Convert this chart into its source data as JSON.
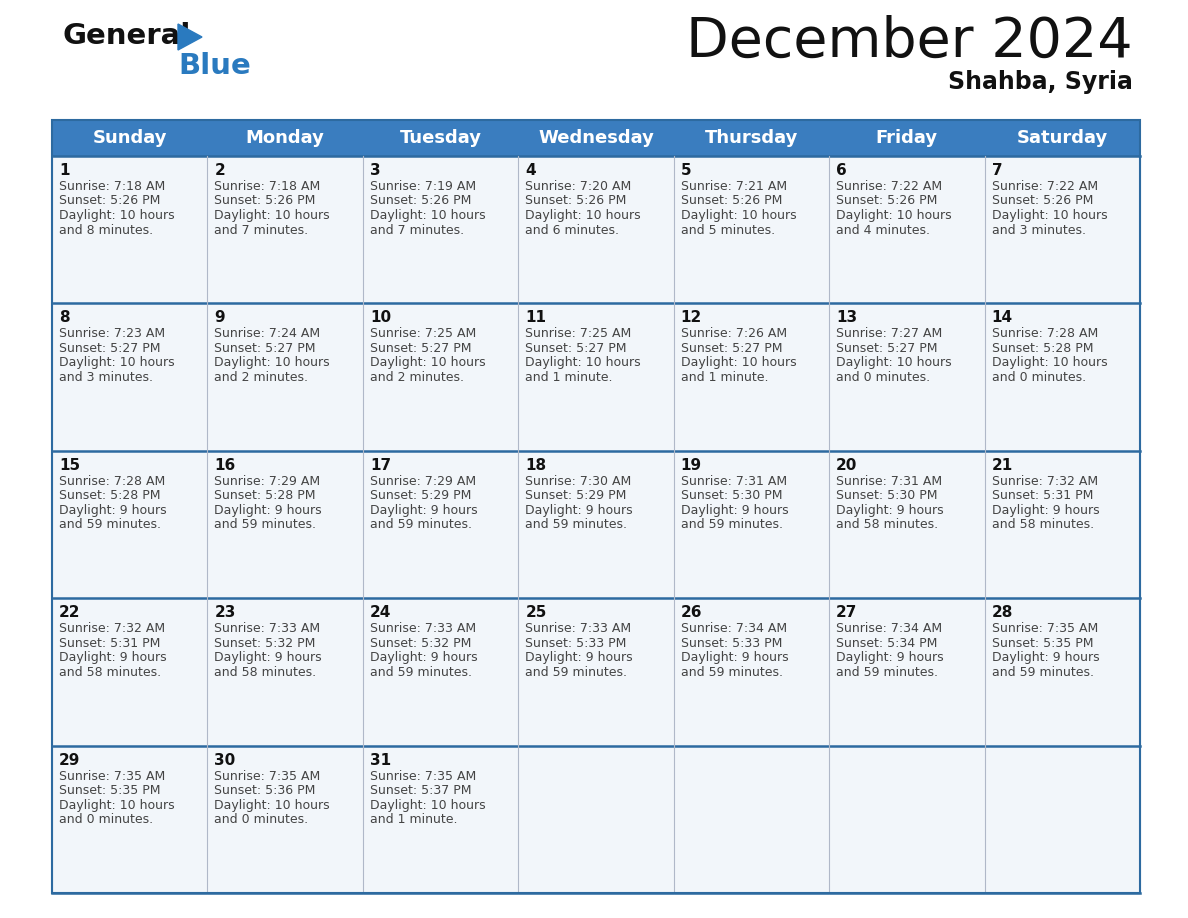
{
  "title": "December 2024",
  "subtitle": "Shahba, Syria",
  "header_bg_color": "#3a7dbf",
  "header_text_color": "#ffffff",
  "days_of_week": [
    "Sunday",
    "Monday",
    "Tuesday",
    "Wednesday",
    "Thursday",
    "Friday",
    "Saturday"
  ],
  "bg_color": "#ffffff",
  "cell_bg_light": "#f2f6fa",
  "cell_bg_white": "#ffffff",
  "row_line_color": "#2d6aa0",
  "grid_line_color": "#b0b8c8",
  "day_num_color": "#111111",
  "text_color": "#444444",
  "calendar_data": [
    {
      "day": 1,
      "row": 0,
      "col": 0,
      "sunrise": "7:18 AM",
      "sunset": "5:26 PM",
      "daylight_h": "10 hours",
      "daylight_m": "and 8 minutes."
    },
    {
      "day": 2,
      "row": 0,
      "col": 1,
      "sunrise": "7:18 AM",
      "sunset": "5:26 PM",
      "daylight_h": "10 hours",
      "daylight_m": "and 7 minutes."
    },
    {
      "day": 3,
      "row": 0,
      "col": 2,
      "sunrise": "7:19 AM",
      "sunset": "5:26 PM",
      "daylight_h": "10 hours",
      "daylight_m": "and 7 minutes."
    },
    {
      "day": 4,
      "row": 0,
      "col": 3,
      "sunrise": "7:20 AM",
      "sunset": "5:26 PM",
      "daylight_h": "10 hours",
      "daylight_m": "and 6 minutes."
    },
    {
      "day": 5,
      "row": 0,
      "col": 4,
      "sunrise": "7:21 AM",
      "sunset": "5:26 PM",
      "daylight_h": "10 hours",
      "daylight_m": "and 5 minutes."
    },
    {
      "day": 6,
      "row": 0,
      "col": 5,
      "sunrise": "7:22 AM",
      "sunset": "5:26 PM",
      "daylight_h": "10 hours",
      "daylight_m": "and 4 minutes."
    },
    {
      "day": 7,
      "row": 0,
      "col": 6,
      "sunrise": "7:22 AM",
      "sunset": "5:26 PM",
      "daylight_h": "10 hours",
      "daylight_m": "and 3 minutes."
    },
    {
      "day": 8,
      "row": 1,
      "col": 0,
      "sunrise": "7:23 AM",
      "sunset": "5:27 PM",
      "daylight_h": "10 hours",
      "daylight_m": "and 3 minutes."
    },
    {
      "day": 9,
      "row": 1,
      "col": 1,
      "sunrise": "7:24 AM",
      "sunset": "5:27 PM",
      "daylight_h": "10 hours",
      "daylight_m": "and 2 minutes."
    },
    {
      "day": 10,
      "row": 1,
      "col": 2,
      "sunrise": "7:25 AM",
      "sunset": "5:27 PM",
      "daylight_h": "10 hours",
      "daylight_m": "and 2 minutes."
    },
    {
      "day": 11,
      "row": 1,
      "col": 3,
      "sunrise": "7:25 AM",
      "sunset": "5:27 PM",
      "daylight_h": "10 hours",
      "daylight_m": "and 1 minute."
    },
    {
      "day": 12,
      "row": 1,
      "col": 4,
      "sunrise": "7:26 AM",
      "sunset": "5:27 PM",
      "daylight_h": "10 hours",
      "daylight_m": "and 1 minute."
    },
    {
      "day": 13,
      "row": 1,
      "col": 5,
      "sunrise": "7:27 AM",
      "sunset": "5:27 PM",
      "daylight_h": "10 hours",
      "daylight_m": "and 0 minutes."
    },
    {
      "day": 14,
      "row": 1,
      "col": 6,
      "sunrise": "7:28 AM",
      "sunset": "5:28 PM",
      "daylight_h": "10 hours",
      "daylight_m": "and 0 minutes."
    },
    {
      "day": 15,
      "row": 2,
      "col": 0,
      "sunrise": "7:28 AM",
      "sunset": "5:28 PM",
      "daylight_h": "9 hours",
      "daylight_m": "and 59 minutes."
    },
    {
      "day": 16,
      "row": 2,
      "col": 1,
      "sunrise": "7:29 AM",
      "sunset": "5:28 PM",
      "daylight_h": "9 hours",
      "daylight_m": "and 59 minutes."
    },
    {
      "day": 17,
      "row": 2,
      "col": 2,
      "sunrise": "7:29 AM",
      "sunset": "5:29 PM",
      "daylight_h": "9 hours",
      "daylight_m": "and 59 minutes."
    },
    {
      "day": 18,
      "row": 2,
      "col": 3,
      "sunrise": "7:30 AM",
      "sunset": "5:29 PM",
      "daylight_h": "9 hours",
      "daylight_m": "and 59 minutes."
    },
    {
      "day": 19,
      "row": 2,
      "col": 4,
      "sunrise": "7:31 AM",
      "sunset": "5:30 PM",
      "daylight_h": "9 hours",
      "daylight_m": "and 59 minutes."
    },
    {
      "day": 20,
      "row": 2,
      "col": 5,
      "sunrise": "7:31 AM",
      "sunset": "5:30 PM",
      "daylight_h": "9 hours",
      "daylight_m": "and 58 minutes."
    },
    {
      "day": 21,
      "row": 2,
      "col": 6,
      "sunrise": "7:32 AM",
      "sunset": "5:31 PM",
      "daylight_h": "9 hours",
      "daylight_m": "and 58 minutes."
    },
    {
      "day": 22,
      "row": 3,
      "col": 0,
      "sunrise": "7:32 AM",
      "sunset": "5:31 PM",
      "daylight_h": "9 hours",
      "daylight_m": "and 58 minutes."
    },
    {
      "day": 23,
      "row": 3,
      "col": 1,
      "sunrise": "7:33 AM",
      "sunset": "5:32 PM",
      "daylight_h": "9 hours",
      "daylight_m": "and 58 minutes."
    },
    {
      "day": 24,
      "row": 3,
      "col": 2,
      "sunrise": "7:33 AM",
      "sunset": "5:32 PM",
      "daylight_h": "9 hours",
      "daylight_m": "and 59 minutes."
    },
    {
      "day": 25,
      "row": 3,
      "col": 3,
      "sunrise": "7:33 AM",
      "sunset": "5:33 PM",
      "daylight_h": "9 hours",
      "daylight_m": "and 59 minutes."
    },
    {
      "day": 26,
      "row": 3,
      "col": 4,
      "sunrise": "7:34 AM",
      "sunset": "5:33 PM",
      "daylight_h": "9 hours",
      "daylight_m": "and 59 minutes."
    },
    {
      "day": 27,
      "row": 3,
      "col": 5,
      "sunrise": "7:34 AM",
      "sunset": "5:34 PM",
      "daylight_h": "9 hours",
      "daylight_m": "and 59 minutes."
    },
    {
      "day": 28,
      "row": 3,
      "col": 6,
      "sunrise": "7:35 AM",
      "sunset": "5:35 PM",
      "daylight_h": "9 hours",
      "daylight_m": "and 59 minutes."
    },
    {
      "day": 29,
      "row": 4,
      "col": 0,
      "sunrise": "7:35 AM",
      "sunset": "5:35 PM",
      "daylight_h": "10 hours",
      "daylight_m": "and 0 minutes."
    },
    {
      "day": 30,
      "row": 4,
      "col": 1,
      "sunrise": "7:35 AM",
      "sunset": "5:36 PM",
      "daylight_h": "10 hours",
      "daylight_m": "and 0 minutes."
    },
    {
      "day": 31,
      "row": 4,
      "col": 2,
      "sunrise": "7:35 AM",
      "sunset": "5:37 PM",
      "daylight_h": "10 hours",
      "daylight_m": "and 1 minute."
    }
  ],
  "num_rows": 5,
  "num_cols": 7,
  "logo_general_color": "#111111",
  "logo_blue_color": "#2a7abf",
  "logo_triangle_color": "#2a7abf",
  "title_fontsize": 40,
  "subtitle_fontsize": 17,
  "header_fontsize": 13,
  "day_num_fontsize": 11,
  "cell_text_fontsize": 9
}
